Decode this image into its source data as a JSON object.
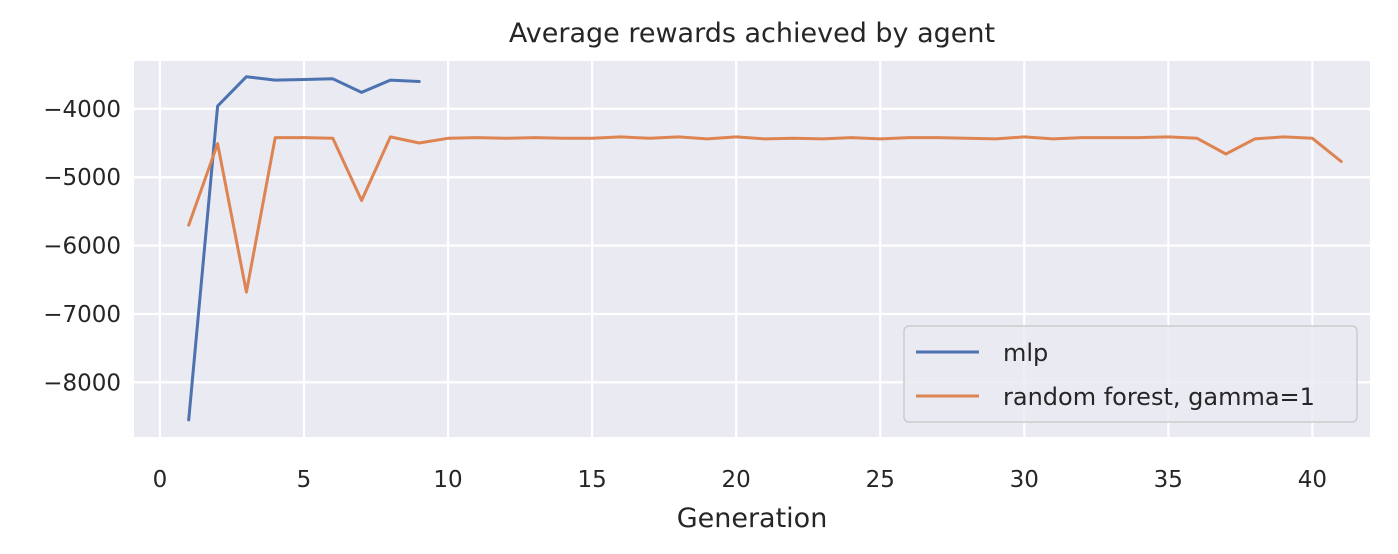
{
  "chart_data": {
    "type": "line",
    "title": "Average rewards achieved by agent",
    "xlabel": "Generation",
    "ylabel": "",
    "xlim": [
      -0.9,
      42.0
    ],
    "ylim": [
      -8800,
      -3300
    ],
    "xticks": [
      0,
      5,
      10,
      15,
      20,
      25,
      30,
      35,
      40
    ],
    "yticks": [
      -8000,
      -7000,
      -6000,
      -5000,
      -4000
    ],
    "xtick_labels": [
      "0",
      "5",
      "10",
      "15",
      "20",
      "25",
      "30",
      "35",
      "40"
    ],
    "ytick_labels": [
      "−8000",
      "−7000",
      "−6000",
      "−5000",
      "−4000"
    ],
    "grid": true,
    "legend_position": "lower-right",
    "series": [
      {
        "name": "mlp",
        "color": "#4c72b0",
        "x": [
          1,
          2,
          3,
          4,
          5,
          6,
          7,
          8,
          9
        ],
        "y": [
          -8550,
          -3960,
          -3530,
          -3580,
          -3570,
          -3560,
          -3760,
          -3580,
          -3600
        ]
      },
      {
        "name": "random forest, gamma=1",
        "color": "#dd8452",
        "x": [
          1,
          2,
          3,
          4,
          5,
          6,
          7,
          8,
          9,
          10,
          11,
          12,
          13,
          14,
          15,
          16,
          17,
          18,
          19,
          20,
          21,
          22,
          23,
          24,
          25,
          26,
          27,
          28,
          29,
          30,
          31,
          32,
          33,
          34,
          35,
          36,
          37,
          38,
          39,
          40,
          41
        ],
        "y": [
          -5700,
          -4510,
          -6680,
          -4420,
          -4420,
          -4430,
          -5340,
          -4410,
          -4500,
          -4430,
          -4420,
          -4430,
          -4420,
          -4430,
          -4430,
          -4410,
          -4430,
          -4410,
          -4440,
          -4410,
          -4440,
          -4430,
          -4440,
          -4420,
          -4440,
          -4420,
          -4420,
          -4430,
          -4440,
          -4410,
          -4440,
          -4420,
          -4420,
          -4420,
          -4410,
          -4430,
          -4660,
          -4440,
          -4410,
          -4430,
          -4770
        ]
      }
    ]
  },
  "colors": {
    "plot_background": "#eaeaf2",
    "grid": "#ffffff",
    "text": "#262626"
  }
}
